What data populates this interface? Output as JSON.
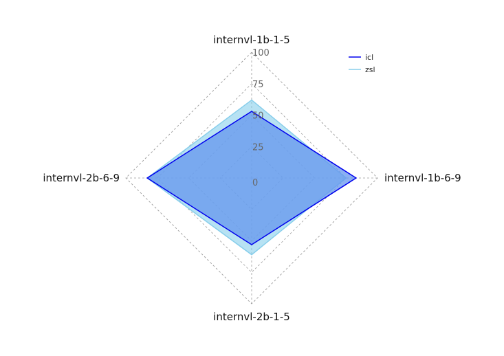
{
  "chart_data": {
    "type": "radar",
    "title": "",
    "axes": [
      "internvl-1b-1-5",
      "internvl-1b-6-9",
      "internvl-2b-1-5",
      "internvl-2b-6-9"
    ],
    "rlim": [
      0,
      100
    ],
    "ticks": [
      "0",
      "25",
      "50",
      "75",
      "100"
    ],
    "tick_values": [
      0,
      25,
      50,
      75,
      100
    ],
    "grid": true,
    "legend_position": "top-right",
    "series": [
      {
        "name": "zsl",
        "values": [
          62,
          75,
          61,
          83
        ],
        "color": "#87ceeb",
        "fill": "#87ceeb"
      },
      {
        "name": "icl",
        "values": [
          53,
          83,
          53,
          83
        ],
        "color": "#0000ee",
        "fill": "#6495ed"
      }
    ]
  }
}
